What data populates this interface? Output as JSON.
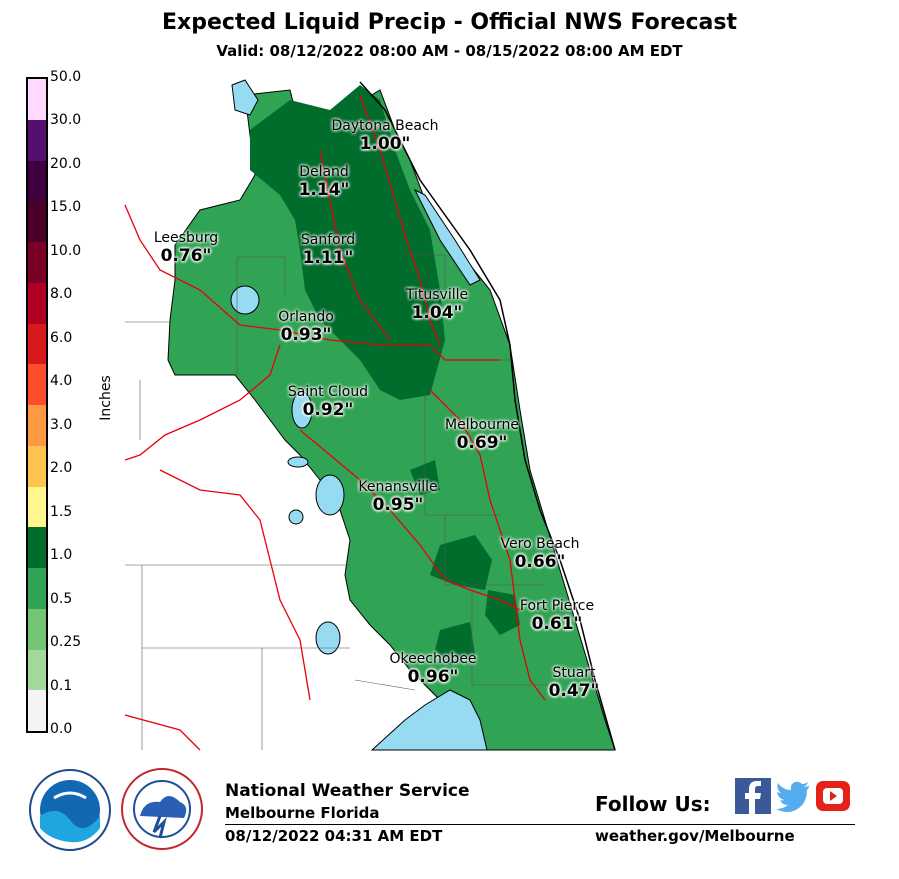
{
  "header": {
    "title": "Expected Liquid Precip - Official NWS Forecast",
    "valid": "Valid: 08/12/2022 08:00 AM - 08/15/2022 08:00 AM EDT"
  },
  "legend": {
    "title": "Inches",
    "bins": [
      {
        "label": "0.0",
        "color": "#f4f4f4"
      },
      {
        "label": "0.1",
        "color": "#a1d99b"
      },
      {
        "label": "0.25",
        "color": "#74c476"
      },
      {
        "label": "0.5",
        "color": "#31a354"
      },
      {
        "label": "1.0",
        "color": "#006d2c"
      },
      {
        "label": "1.5",
        "color": "#fff68f"
      },
      {
        "label": "2.0",
        "color": "#fec44f"
      },
      {
        "label": "3.0",
        "color": "#fe9841"
      },
      {
        "label": "4.0",
        "color": "#fc4e2a"
      },
      {
        "label": "6.0",
        "color": "#d7191c"
      },
      {
        "label": "8.0",
        "color": "#b10026"
      },
      {
        "label": "10.0",
        "color": "#7a0026"
      },
      {
        "label": "15.0",
        "color": "#4a0028"
      },
      {
        "label": "20.0",
        "color": "#3f0040"
      },
      {
        "label": "30.0",
        "color": "#54106e"
      },
      {
        "label": "50.0",
        "color": "#ffd9ff"
      }
    ]
  },
  "cities": [
    {
      "name": "Daytona Beach",
      "value": "1.00\""
    },
    {
      "name": "Deland",
      "value": "1.14\""
    },
    {
      "name": "Sanford",
      "value": "1.11\""
    },
    {
      "name": "Leesburg",
      "value": "0.76\""
    },
    {
      "name": "Titusville",
      "value": "1.04\""
    },
    {
      "name": "Orlando",
      "value": "0.93\""
    },
    {
      "name": "Saint Cloud",
      "value": "0.92\""
    },
    {
      "name": "Melbourne",
      "value": "0.69\""
    },
    {
      "name": "Kenansville",
      "value": "0.95\""
    },
    {
      "name": "Vero Beach",
      "value": "0.66\""
    },
    {
      "name": "Fort Pierce",
      "value": "0.61\""
    },
    {
      "name": "Okeechobee",
      "value": "0.96\""
    },
    {
      "name": "Stuart",
      "value": "0.47\""
    }
  ],
  "footer": {
    "office": "National Weather Service",
    "location": "Melbourne Florida",
    "issued": "08/12/2022 04:31 AM EDT",
    "follow": "Follow Us:",
    "website": "weather.gov/Melbourne",
    "social_icons": [
      "facebook-icon",
      "twitter-icon",
      "youtube-icon"
    ]
  },
  "colors": {
    "water": "#97dbf2",
    "roads": "#e8000b",
    "counties": "#555555"
  }
}
